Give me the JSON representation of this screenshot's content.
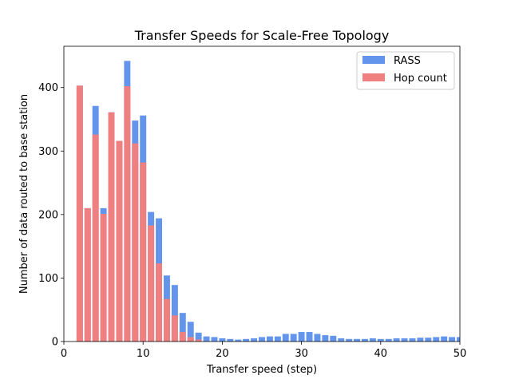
{
  "chart_data": {
    "type": "bar",
    "title": "Transfer Speeds for Scale-Free Topology",
    "xlabel": "Transfer speed (step)",
    "ylabel": "Number of data routed to base station",
    "xlim": [
      0,
      50
    ],
    "ylim": [
      0,
      465
    ],
    "x_ticks": [
      0,
      10,
      20,
      30,
      40,
      50
    ],
    "y_ticks": [
      0,
      100,
      200,
      300,
      400
    ],
    "grid": false,
    "legend_position": "top-right",
    "overlay": true,
    "x": [
      2,
      3,
      4,
      5,
      6,
      7,
      8,
      9,
      10,
      11,
      12,
      13,
      14,
      15,
      16,
      17,
      18,
      19,
      20,
      21,
      22,
      23,
      24,
      25,
      26,
      27,
      28,
      29,
      30,
      31,
      32,
      33,
      34,
      35,
      36,
      37,
      38,
      39,
      40,
      41,
      42,
      43,
      44,
      45,
      46,
      47,
      48,
      49,
      50
    ],
    "series": [
      {
        "name": "RASS",
        "color": "#6495ED",
        "values": [
          403,
          210,
          371,
          210,
          361,
          316,
          442,
          348,
          356,
          204,
          194,
          104,
          89,
          45,
          31,
          14,
          8,
          7,
          5,
          4,
          3,
          4,
          5,
          7,
          8,
          8,
          12,
          12,
          15,
          15,
          12,
          10,
          9,
          5,
          4,
          4,
          4,
          5,
          4,
          4,
          5,
          5,
          5,
          6,
          6,
          7,
          8,
          7,
          7
        ]
      },
      {
        "name": "Hop count",
        "color": "#F08080",
        "values": [
          403,
          210,
          326,
          201,
          361,
          316,
          402,
          312,
          282,
          183,
          123,
          67,
          41,
          15,
          7,
          3,
          0,
          0,
          0,
          0,
          0,
          0,
          0,
          0,
          0,
          0,
          0,
          0,
          0,
          0,
          0,
          0,
          0,
          0,
          0,
          0,
          0,
          0,
          0,
          0,
          0,
          0,
          0,
          0,
          0,
          0,
          0,
          0,
          0
        ]
      }
    ]
  }
}
